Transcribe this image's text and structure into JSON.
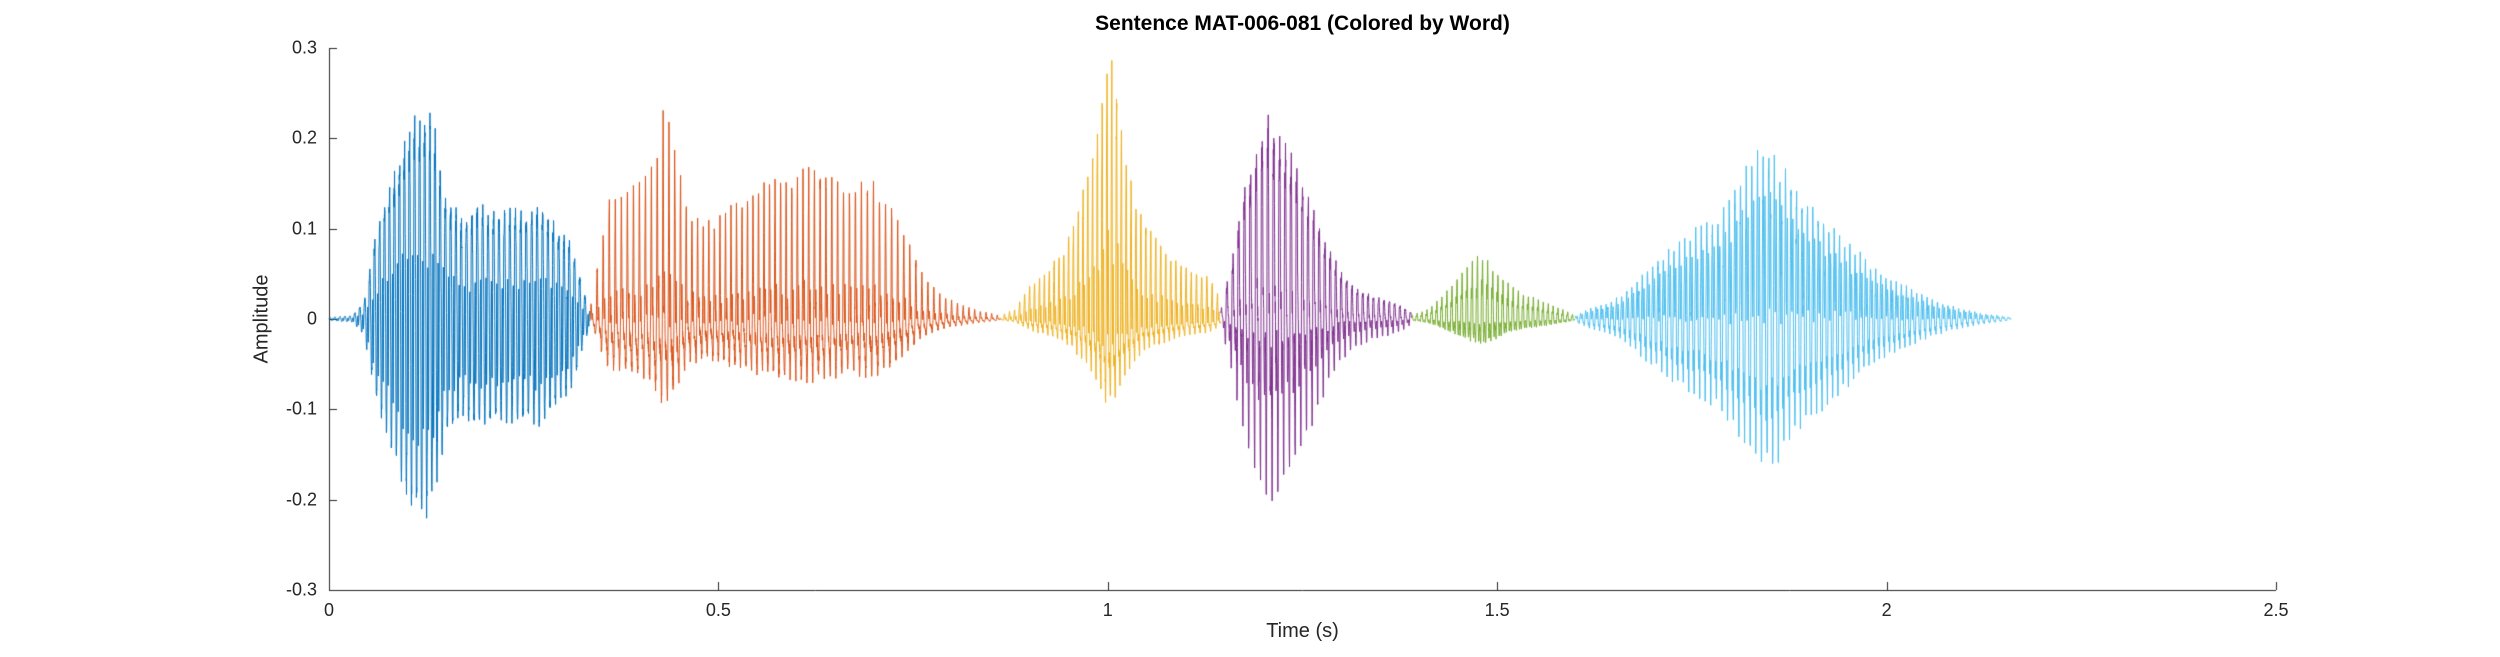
{
  "figure": {
    "title": "Sentence MAT-006-081 (Colored by Word)",
    "background": "#ffffff",
    "axis_color": "#262626",
    "title_color": "#000000"
  },
  "chart_data": {
    "type": "line",
    "subtype": "audio-waveform-colored-by-word",
    "title": "Sentence MAT-006-081 (Colored by Word)",
    "xlabel": "Time (s)",
    "ylabel": "Amplitude",
    "xlim": [
      0,
      2.5
    ],
    "ylim": [
      -0.3,
      0.3
    ],
    "xticks": [
      0,
      0.5,
      1,
      1.5,
      2,
      2.5
    ],
    "xtick_labels": [
      "0",
      "0.5",
      "1",
      "1.5",
      "2",
      "2.5"
    ],
    "yticks": [
      -0.3,
      -0.2,
      -0.1,
      0,
      0.1,
      0.2,
      0.3
    ],
    "ytick_labels": [
      "-0.3",
      "-0.2",
      "-0.1",
      "0",
      "0.1",
      "0.2",
      "0.3"
    ],
    "grid": false,
    "legend": null,
    "num_words": 6,
    "word_colors": [
      "#0072BD",
      "#D95319",
      "#EDB120",
      "#7E2F8E",
      "#77AC30",
      "#4DBEEE"
    ],
    "segments": [
      {
        "word_index": 1,
        "color": "#0072BD",
        "t_start": 0.0,
        "t_end": 0.335,
        "f0": 150,
        "neg_scale": 0.85,
        "envelope": [
          [
            0.0,
            0.002
          ],
          [
            0.03,
            0.004
          ],
          [
            0.045,
            0.02
          ],
          [
            0.06,
            0.1
          ],
          [
            0.08,
            0.16
          ],
          [
            0.1,
            0.22
          ],
          [
            0.12,
            0.25
          ],
          [
            0.135,
            0.23
          ],
          [
            0.15,
            0.14
          ],
          [
            0.17,
            0.12
          ],
          [
            0.19,
            0.135
          ],
          [
            0.21,
            0.125
          ],
          [
            0.23,
            0.13
          ],
          [
            0.25,
            0.125
          ],
          [
            0.27,
            0.135
          ],
          [
            0.29,
            0.11
          ],
          [
            0.31,
            0.09
          ],
          [
            0.325,
            0.04
          ],
          [
            0.335,
            0.01
          ]
        ]
      },
      {
        "word_index": 2,
        "color": "#D95319",
        "t_start": 0.335,
        "t_end": 0.862,
        "f0": 135,
        "neg_scale": 0.72,
        "envelope": [
          [
            0.335,
            0.01
          ],
          [
            0.345,
            0.06
          ],
          [
            0.36,
            0.13
          ],
          [
            0.38,
            0.13
          ],
          [
            0.4,
            0.15
          ],
          [
            0.415,
            0.16
          ],
          [
            0.43,
            0.22
          ],
          [
            0.445,
            0.18
          ],
          [
            0.46,
            0.12
          ],
          [
            0.48,
            0.1
          ],
          [
            0.5,
            0.105
          ],
          [
            0.52,
            0.12
          ],
          [
            0.55,
            0.14
          ],
          [
            0.58,
            0.15
          ],
          [
            0.61,
            0.16
          ],
          [
            0.64,
            0.15
          ],
          [
            0.67,
            0.14
          ],
          [
            0.7,
            0.145
          ],
          [
            0.72,
            0.12
          ],
          [
            0.74,
            0.09
          ],
          [
            0.76,
            0.05
          ],
          [
            0.78,
            0.03
          ],
          [
            0.8,
            0.02
          ],
          [
            0.83,
            0.01
          ],
          [
            0.862,
            0.004
          ]
        ]
      },
      {
        "word_index": 3,
        "color": "#EDB120",
        "t_start": 0.862,
        "t_end": 1.145,
        "f0": 155,
        "neg_scale": 0.45,
        "envelope": [
          [
            0.862,
            0.004
          ],
          [
            0.88,
            0.01
          ],
          [
            0.9,
            0.035
          ],
          [
            0.92,
            0.05
          ],
          [
            0.94,
            0.07
          ],
          [
            0.96,
            0.11
          ],
          [
            0.98,
            0.17
          ],
          [
            1.0,
            0.28
          ],
          [
            1.01,
            0.26
          ],
          [
            1.02,
            0.19
          ],
          [
            1.035,
            0.13
          ],
          [
            1.05,
            0.1
          ],
          [
            1.07,
            0.08
          ],
          [
            1.09,
            0.06
          ],
          [
            1.11,
            0.05
          ],
          [
            1.13,
            0.045
          ],
          [
            1.145,
            0.02
          ]
        ]
      },
      {
        "word_index": 4,
        "color": "#7E2F8E",
        "t_start": 1.145,
        "t_end": 1.39,
        "f0": 140,
        "neg_scale": 0.75,
        "envelope": [
          [
            1.145,
            0.01
          ],
          [
            1.16,
            0.08
          ],
          [
            1.175,
            0.17
          ],
          [
            1.19,
            0.22
          ],
          [
            1.205,
            0.26
          ],
          [
            1.22,
            0.24
          ],
          [
            1.235,
            0.22
          ],
          [
            1.25,
            0.18
          ],
          [
            1.265,
            0.14
          ],
          [
            1.28,
            0.1
          ],
          [
            1.3,
            0.06
          ],
          [
            1.32,
            0.04
          ],
          [
            1.34,
            0.03
          ],
          [
            1.36,
            0.025
          ],
          [
            1.38,
            0.015
          ],
          [
            1.39,
            0.008
          ]
        ]
      },
      {
        "word_index": 5,
        "color": "#77AC30",
        "t_start": 1.39,
        "t_end": 1.6,
        "f0": 160,
        "neg_scale": 0.6,
        "envelope": [
          [
            1.39,
            0.004
          ],
          [
            1.41,
            0.01
          ],
          [
            1.43,
            0.025
          ],
          [
            1.45,
            0.045
          ],
          [
            1.465,
            0.06
          ],
          [
            1.48,
            0.07
          ],
          [
            1.495,
            0.055
          ],
          [
            1.51,
            0.04
          ],
          [
            1.53,
            0.03
          ],
          [
            1.55,
            0.022
          ],
          [
            1.57,
            0.015
          ],
          [
            1.59,
            0.008
          ],
          [
            1.6,
            0.004
          ]
        ]
      },
      {
        "word_index": 6,
        "color": "#4DBEEE",
        "t_start": 1.6,
        "t_end": 2.16,
        "f0": 145,
        "neg_scale": 0.72,
        "envelope": [
          [
            1.6,
            0.004
          ],
          [
            1.62,
            0.015
          ],
          [
            1.64,
            0.02
          ],
          [
            1.66,
            0.03
          ],
          [
            1.68,
            0.05
          ],
          [
            1.7,
            0.07
          ],
          [
            1.72,
            0.09
          ],
          [
            1.75,
            0.11
          ],
          [
            1.78,
            0.13
          ],
          [
            1.8,
            0.16
          ],
          [
            1.82,
            0.19
          ],
          [
            1.84,
            0.22
          ],
          [
            1.86,
            0.21
          ],
          [
            1.88,
            0.17
          ],
          [
            1.9,
            0.15
          ],
          [
            1.92,
            0.13
          ],
          [
            1.94,
            0.11
          ],
          [
            1.96,
            0.09
          ],
          [
            1.98,
            0.07
          ],
          [
            2.0,
            0.055
          ],
          [
            2.03,
            0.04
          ],
          [
            2.06,
            0.025
          ],
          [
            2.09,
            0.015
          ],
          [
            2.12,
            0.008
          ],
          [
            2.16,
            0.002
          ]
        ]
      }
    ]
  }
}
